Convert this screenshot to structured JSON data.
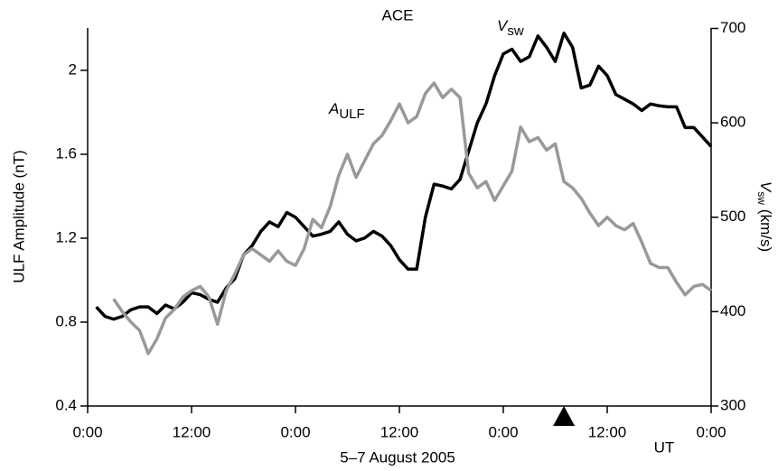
{
  "chart_data": {
    "type": "line",
    "title": "ACE",
    "xlabel": "5–7 August 2005",
    "x_unit_label": "UT",
    "ylabel": "ULF Amplitude (nT)",
    "y2label": {
      "symbol": "V",
      "subscript": "sw",
      "unit": "(km/s)"
    },
    "xlim": [
      0,
      72
    ],
    "xticks": [
      {
        "value": 0,
        "label": "0:00"
      },
      {
        "value": 12,
        "label": "12:00"
      },
      {
        "value": 24,
        "label": "0:00"
      },
      {
        "value": 36,
        "label": "12:00"
      },
      {
        "value": 48,
        "label": "0:00"
      },
      {
        "value": 60,
        "label": "12:00"
      },
      {
        "value": 72,
        "label": "0:00"
      }
    ],
    "ylim": [
      0.4,
      2.2
    ],
    "yticks": [
      0.4,
      0.8,
      1.2,
      1.6,
      2
    ],
    "y2lim": [
      300,
      700
    ],
    "y2ticks": [
      300,
      400,
      500,
      600,
      700
    ],
    "marker_x": 55,
    "series": [
      {
        "name": "V",
        "subscript": "sw",
        "color": "#000000",
        "axis": "y2",
        "x": [
          1,
          2,
          3,
          4,
          5,
          6,
          7,
          8,
          9,
          10,
          11,
          12,
          13,
          14,
          15,
          16,
          17,
          18,
          19,
          20,
          21,
          22,
          23,
          24,
          25,
          26,
          27,
          28,
          29,
          30,
          31,
          32,
          33,
          34,
          35,
          36,
          37,
          38,
          39,
          40,
          41,
          42,
          43,
          44,
          45,
          46,
          47,
          48,
          49,
          50,
          51,
          52,
          53,
          54,
          55,
          56,
          57,
          58,
          59,
          60,
          61,
          62,
          63,
          64,
          65,
          66,
          67,
          68,
          69,
          70,
          71,
          72
        ],
        "values": [
          405,
          395,
          392,
          395,
          402,
          405,
          405,
          398,
          407,
          403,
          410,
          420,
          418,
          413,
          410,
          425,
          435,
          460,
          470,
          485,
          495,
          490,
          505,
          500,
          490,
          480,
          482,
          485,
          495,
          482,
          475,
          478,
          485,
          480,
          470,
          455,
          445,
          445,
          500,
          535,
          533,
          530,
          540,
          570,
          600,
          620,
          650,
          673,
          678,
          665,
          670,
          692,
          680,
          665,
          695,
          680,
          637,
          640,
          660,
          650,
          630,
          625,
          620,
          613,
          620,
          618,
          617,
          617,
          595,
          595,
          585,
          575
        ]
      },
      {
        "name": "A",
        "subscript": "ULF",
        "color": "#999999",
        "x": [
          3,
          4,
          5,
          6,
          7,
          8,
          9,
          10,
          11,
          12,
          13,
          14,
          15,
          16,
          17,
          18,
          19,
          20,
          21,
          22,
          23,
          24,
          25,
          26,
          27,
          28,
          29,
          30,
          31,
          32,
          33,
          34,
          35,
          36,
          37,
          38,
          39,
          40,
          41,
          42,
          43,
          44,
          45,
          46,
          47,
          48,
          49,
          50,
          51,
          52,
          53,
          54,
          55,
          56,
          57,
          58,
          59,
          60,
          61,
          62,
          63,
          64,
          65,
          66,
          67,
          68,
          69,
          70,
          71,
          72
        ],
        "values": [
          0.91,
          0.85,
          0.8,
          0.76,
          0.65,
          0.72,
          0.82,
          0.86,
          0.92,
          0.95,
          0.97,
          0.92,
          0.79,
          0.95,
          1.03,
          1.12,
          1.15,
          1.12,
          1.09,
          1.14,
          1.09,
          1.07,
          1.15,
          1.29,
          1.25,
          1.35,
          1.5,
          1.6,
          1.49,
          1.57,
          1.65,
          1.69,
          1.76,
          1.84,
          1.75,
          1.78,
          1.89,
          1.94,
          1.87,
          1.91,
          1.87,
          1.51,
          1.44,
          1.47,
          1.38,
          1.45,
          1.52,
          1.73,
          1.66,
          1.68,
          1.62,
          1.65,
          1.47,
          1.44,
          1.39,
          1.32,
          1.26,
          1.3,
          1.26,
          1.24,
          1.27,
          1.18,
          1.08,
          1.06,
          1.06,
          0.99,
          0.93,
          0.97,
          0.98,
          0.95
        ]
      }
    ]
  }
}
